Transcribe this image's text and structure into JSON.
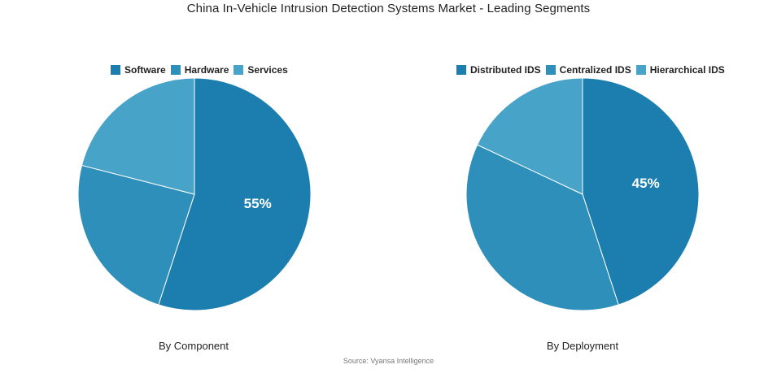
{
  "title": "China In-Vehicle Intrusion Detection Systems Market - Leading Segments",
  "source": "Source: Vyansa Intelligence",
  "colors": [
    "#1c7eae",
    "#2e8fbb",
    "#48a3c8"
  ],
  "chart_data": [
    {
      "type": "pie",
      "caption": "By Component",
      "categories": [
        "Software",
        "Hardware",
        "Services"
      ],
      "values": [
        55,
        24,
        21
      ],
      "data_labels": [
        "55%",
        "",
        ""
      ],
      "legend_position": "top"
    },
    {
      "type": "pie",
      "caption": "By Deployment",
      "categories": [
        "Distributed IDS",
        "Centralized IDS",
        "Hierarchical IDS"
      ],
      "values": [
        45,
        37,
        18
      ],
      "data_labels": [
        "45%",
        "",
        ""
      ],
      "legend_position": "top"
    }
  ]
}
